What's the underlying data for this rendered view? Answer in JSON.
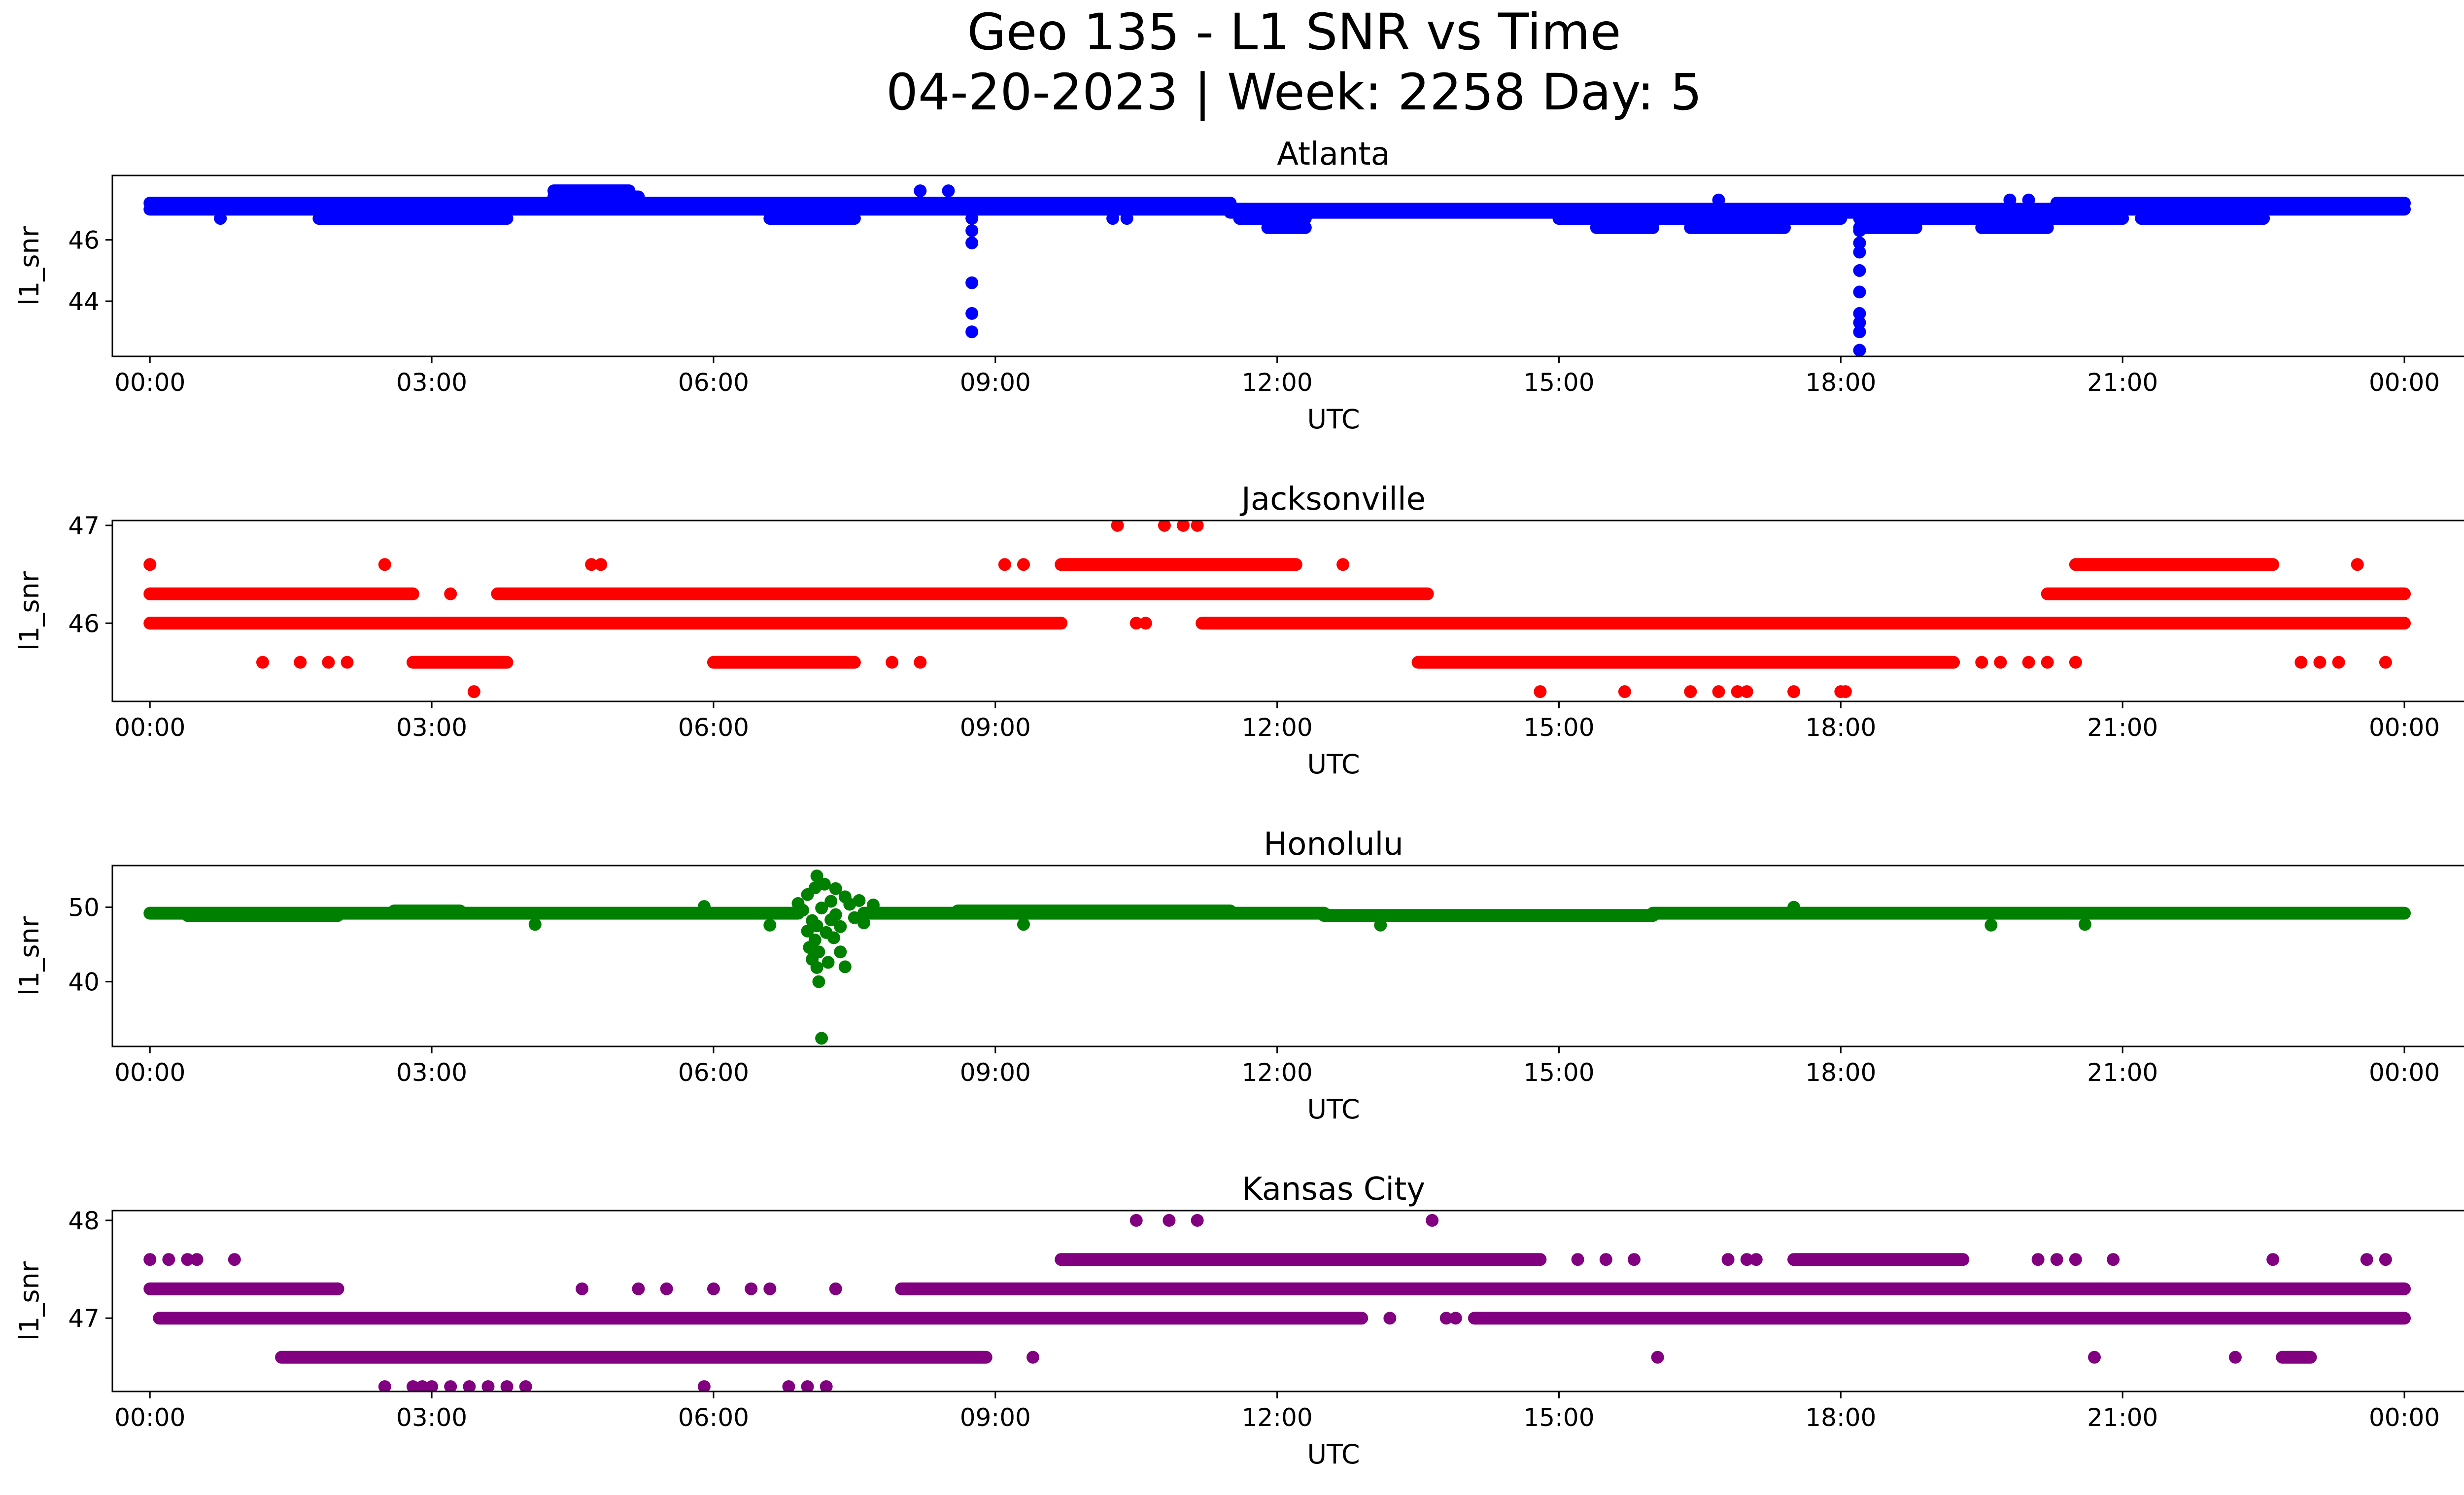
{
  "figure": {
    "title_line1": "Geo 135 - L1 SNR vs Time",
    "title_line2": "04-20-2023 | Week: 2258 Day: 5"
  },
  "chart_data": [
    {
      "type": "scatter",
      "title": "Atlanta",
      "xlabel": "UTC",
      "ylabel": "l1_snr",
      "color": "#0000ff",
      "x_unit": "hours UTC",
      "xlim": [
        -0.4,
        25.6
      ],
      "xticks": [
        "00:00",
        "03:00",
        "06:00",
        "09:00",
        "12:00",
        "15:00",
        "18:00",
        "21:00",
        "00:00"
      ],
      "ylim": [
        42.2,
        48.1
      ],
      "yticks": [
        44,
        46
      ],
      "bands": [
        {
          "y": 47.2,
          "x_ranges": [
            [
              0.0,
              4.3
            ],
            [
              5.2,
              11.5
            ],
            [
              20.3,
              24.0
            ]
          ]
        },
        {
          "y": 47.0,
          "x_ranges": [
            [
              0.0,
              24.0
            ]
          ]
        },
        {
          "y": 46.9,
          "x_ranges": [
            [
              11.5,
              20.3
            ]
          ]
        },
        {
          "y": 46.7,
          "x_ranges": [
            [
              1.8,
              3.8
            ],
            [
              6.6,
              7.5
            ],
            [
              11.6,
              12.3
            ],
            [
              15.0,
              18.0
            ],
            [
              18.2,
              21.0
            ],
            [
              21.2,
              22.5
            ]
          ]
        },
        {
          "y": 47.4,
          "x_ranges": [
            [
              4.3,
              5.2
            ]
          ]
        },
        {
          "y": 47.6,
          "x_ranges": [
            [
              4.3,
              5.1
            ]
          ]
        },
        {
          "y": 46.4,
          "x_ranges": [
            [
              11.9,
              12.3
            ],
            [
              15.4,
              16.0
            ],
            [
              16.4,
              17.4
            ],
            [
              18.2,
              18.8
            ],
            [
              19.5,
              20.2
            ]
          ]
        }
      ],
      "points": [
        [
          0.75,
          46.7
        ],
        [
          8.2,
          47.6
        ],
        [
          8.5,
          47.6
        ],
        [
          8.75,
          46.7
        ],
        [
          8.75,
          46.3
        ],
        [
          8.75,
          45.9
        ],
        [
          8.75,
          44.6
        ],
        [
          8.75,
          43.6
        ],
        [
          8.75,
          43.0
        ],
        [
          10.25,
          46.7
        ],
        [
          10.4,
          46.7
        ],
        [
          16.7,
          47.3
        ],
        [
          19.8,
          47.3
        ],
        [
          20.0,
          47.3
        ],
        [
          18.2,
          46.3
        ],
        [
          18.2,
          45.9
        ],
        [
          18.2,
          45.6
        ],
        [
          18.2,
          45.0
        ],
        [
          18.2,
          44.3
        ],
        [
          18.2,
          43.6
        ],
        [
          18.2,
          43.3
        ],
        [
          18.2,
          43.0
        ],
        [
          18.2,
          42.4
        ]
      ]
    },
    {
      "type": "scatter",
      "title": "Jacksonville",
      "xlabel": "UTC",
      "ylabel": "l1_snr",
      "color": "#ff0000",
      "x_unit": "hours UTC",
      "xlim": [
        -0.4,
        25.6
      ],
      "xticks": [
        "00:00",
        "03:00",
        "06:00",
        "09:00",
        "12:00",
        "15:00",
        "18:00",
        "21:00",
        "00:00"
      ],
      "ylim": [
        45.2,
        47.05
      ],
      "yticks": [
        46,
        47
      ],
      "bands": [
        {
          "y": 46.3,
          "x_ranges": [
            [
              0.0,
              2.8
            ],
            [
              3.7,
              13.6
            ],
            [
              20.2,
              24.0
            ]
          ]
        },
        {
          "y": 46.0,
          "x_ranges": [
            [
              0.0,
              9.7
            ],
            [
              11.2,
              24.0
            ]
          ]
        },
        {
          "y": 46.6,
          "x_ranges": [
            [
              9.7,
              12.2
            ],
            [
              20.5,
              22.6
            ]
          ]
        },
        {
          "y": 45.6,
          "x_ranges": [
            [
              2.8,
              3.8
            ],
            [
              6.0,
              7.5
            ],
            [
              13.5,
              19.2
            ]
          ]
        }
      ],
      "points": [
        [
          0.0,
          46.6
        ],
        [
          1.2,
          45.6
        ],
        [
          1.6,
          45.6
        ],
        [
          1.9,
          45.6
        ],
        [
          2.1,
          45.6
        ],
        [
          2.5,
          46.6
        ],
        [
          3.2,
          46.3
        ],
        [
          3.45,
          45.3
        ],
        [
          4.7,
          46.6
        ],
        [
          4.8,
          46.6
        ],
        [
          7.9,
          45.6
        ],
        [
          8.2,
          45.6
        ],
        [
          9.1,
          46.6
        ],
        [
          9.3,
          46.6
        ],
        [
          10.3,
          47.0
        ],
        [
          10.8,
          47.0
        ],
        [
          11.0,
          47.0
        ],
        [
          11.15,
          47.0
        ],
        [
          10.5,
          46.0
        ],
        [
          10.6,
          46.0
        ],
        [
          11.4,
          46.0
        ],
        [
          12.7,
          46.6
        ],
        [
          14.8,
          45.3
        ],
        [
          15.7,
          45.3
        ],
        [
          16.4,
          45.3
        ],
        [
          16.7,
          45.3
        ],
        [
          16.9,
          45.3
        ],
        [
          17.0,
          45.3
        ],
        [
          17.5,
          45.3
        ],
        [
          18.0,
          45.3
        ],
        [
          18.05,
          45.3
        ],
        [
          19.5,
          45.6
        ],
        [
          19.7,
          45.6
        ],
        [
          20.0,
          45.6
        ],
        [
          20.2,
          45.6
        ],
        [
          20.5,
          45.6
        ],
        [
          22.9,
          45.6
        ],
        [
          23.1,
          45.6
        ],
        [
          23.3,
          45.6
        ],
        [
          23.5,
          46.6
        ],
        [
          23.8,
          45.6
        ]
      ]
    },
    {
      "type": "scatter",
      "title": "Honolulu",
      "xlabel": "UTC",
      "ylabel": "l1_snr",
      "color": "#008000",
      "x_unit": "hours UTC",
      "xlim": [
        -0.4,
        25.6
      ],
      "xticks": [
        "00:00",
        "03:00",
        "06:00",
        "09:00",
        "12:00",
        "15:00",
        "18:00",
        "21:00",
        "00:00"
      ],
      "ylim": [
        31.3,
        55.6
      ],
      "yticks": [
        40,
        50
      ],
      "bands": [
        {
          "y": 49.2,
          "x_ranges": [
            [
              0.0,
              6.9
            ],
            [
              7.6,
              12.5
            ],
            [
              16.0,
              24.0
            ]
          ]
        },
        {
          "y": 48.9,
          "x_ranges": [
            [
              12.5,
              16.0
            ],
            [
              0.4,
              2.0
            ]
          ]
        },
        {
          "y": 49.5,
          "x_ranges": [
            [
              8.6,
              11.5
            ],
            [
              2.6,
              3.3
            ]
          ]
        }
      ],
      "points": [
        [
          4.1,
          47.7
        ],
        [
          5.9,
          50.1
        ],
        [
          6.6,
          47.6
        ],
        [
          9.3,
          47.7
        ],
        [
          13.1,
          47.6
        ],
        [
          17.5,
          50.0
        ],
        [
          19.6,
          47.6
        ],
        [
          20.6,
          47.7
        ],
        [
          6.9,
          50.5
        ],
        [
          6.95,
          49.6
        ],
        [
          7.0,
          51.7
        ],
        [
          7.0,
          46.8
        ],
        [
          7.02,
          44.6
        ],
        [
          7.05,
          48.2
        ],
        [
          7.05,
          43.0
        ],
        [
          7.08,
          52.6
        ],
        [
          7.08,
          45.6
        ],
        [
          7.1,
          54.2
        ],
        [
          7.1,
          47.5
        ],
        [
          7.1,
          41.9
        ],
        [
          7.12,
          40.0
        ],
        [
          7.12,
          44.0
        ],
        [
          7.15,
          49.9
        ],
        [
          7.15,
          32.4
        ],
        [
          7.18,
          53.1
        ],
        [
          7.2,
          46.6
        ],
        [
          7.22,
          42.6
        ],
        [
          7.25,
          50.8
        ],
        [
          7.25,
          48.3
        ],
        [
          7.28,
          45.9
        ],
        [
          7.3,
          52.5
        ],
        [
          7.3,
          49.0
        ],
        [
          7.35,
          47.4
        ],
        [
          7.35,
          44.0
        ],
        [
          7.4,
          51.4
        ],
        [
          7.4,
          42.0
        ],
        [
          7.45,
          50.4
        ],
        [
          7.5,
          48.6
        ],
        [
          7.55,
          50.9
        ],
        [
          7.6,
          47.9
        ],
        [
          7.7,
          50.3
        ]
      ]
    },
    {
      "type": "scatter",
      "title": "Kansas City",
      "xlabel": "UTC",
      "ylabel": "l1_snr",
      "color": "#800080",
      "x_unit": "hours UTC",
      "xlim": [
        -0.4,
        25.6
      ],
      "xticks": [
        "00:00",
        "03:00",
        "06:00",
        "09:00",
        "12:00",
        "15:00",
        "18:00",
        "21:00",
        "00:00"
      ],
      "ylim": [
        46.25,
        48.1
      ],
      "yticks": [
        47,
        48
      ],
      "bands": [
        {
          "y": 47.3,
          "x_ranges": [
            [
              0.0,
              2.0
            ],
            [
              8.0,
              24.0
            ]
          ]
        },
        {
          "y": 47.0,
          "x_ranges": [
            [
              0.1,
              12.9
            ],
            [
              14.1,
              24.0
            ]
          ]
        },
        {
          "y": 46.6,
          "x_ranges": [
            [
              1.4,
              8.9
            ],
            [
              22.7,
              23.0
            ]
          ]
        },
        {
          "y": 47.6,
          "x_ranges": [
            [
              9.7,
              14.8
            ],
            [
              17.5,
              19.3
            ]
          ]
        }
      ],
      "points": [
        [
          0.0,
          47.6
        ],
        [
          0.2,
          47.6
        ],
        [
          0.4,
          47.6
        ],
        [
          0.5,
          47.6
        ],
        [
          0.9,
          47.6
        ],
        [
          2.0,
          47.3
        ],
        [
          2.5,
          46.3
        ],
        [
          2.8,
          46.3
        ],
        [
          2.9,
          46.3
        ],
        [
          3.0,
          46.3
        ],
        [
          3.2,
          46.3
        ],
        [
          3.4,
          46.3
        ],
        [
          3.6,
          46.3
        ],
        [
          3.8,
          46.3
        ],
        [
          4.0,
          46.3
        ],
        [
          4.6,
          47.3
        ],
        [
          5.2,
          47.3
        ],
        [
          5.5,
          47.3
        ],
        [
          6.0,
          47.3
        ],
        [
          6.4,
          47.3
        ],
        [
          6.6,
          47.3
        ],
        [
          7.3,
          47.3
        ],
        [
          5.9,
          46.3
        ],
        [
          6.8,
          46.3
        ],
        [
          7.0,
          46.3
        ],
        [
          7.2,
          46.3
        ],
        [
          9.4,
          46.6
        ],
        [
          10.5,
          48.0
        ],
        [
          10.85,
          48.0
        ],
        [
          11.15,
          48.0
        ],
        [
          13.65,
          48.0
        ],
        [
          13.2,
          47.0
        ],
        [
          13.8,
          47.0
        ],
        [
          13.9,
          47.0
        ],
        [
          15.2,
          47.6
        ],
        [
          15.5,
          47.6
        ],
        [
          15.8,
          47.6
        ],
        [
          16.8,
          47.6
        ],
        [
          17.0,
          47.6
        ],
        [
          17.1,
          47.6
        ],
        [
          16.05,
          46.6
        ],
        [
          20.7,
          46.6
        ],
        [
          22.2,
          46.6
        ],
        [
          22.6,
          47.6
        ],
        [
          20.9,
          47.6
        ],
        [
          20.1,
          47.6
        ],
        [
          20.3,
          47.6
        ],
        [
          20.5,
          47.6
        ],
        [
          23.6,
          47.6
        ],
        [
          23.8,
          47.6
        ]
      ]
    }
  ]
}
